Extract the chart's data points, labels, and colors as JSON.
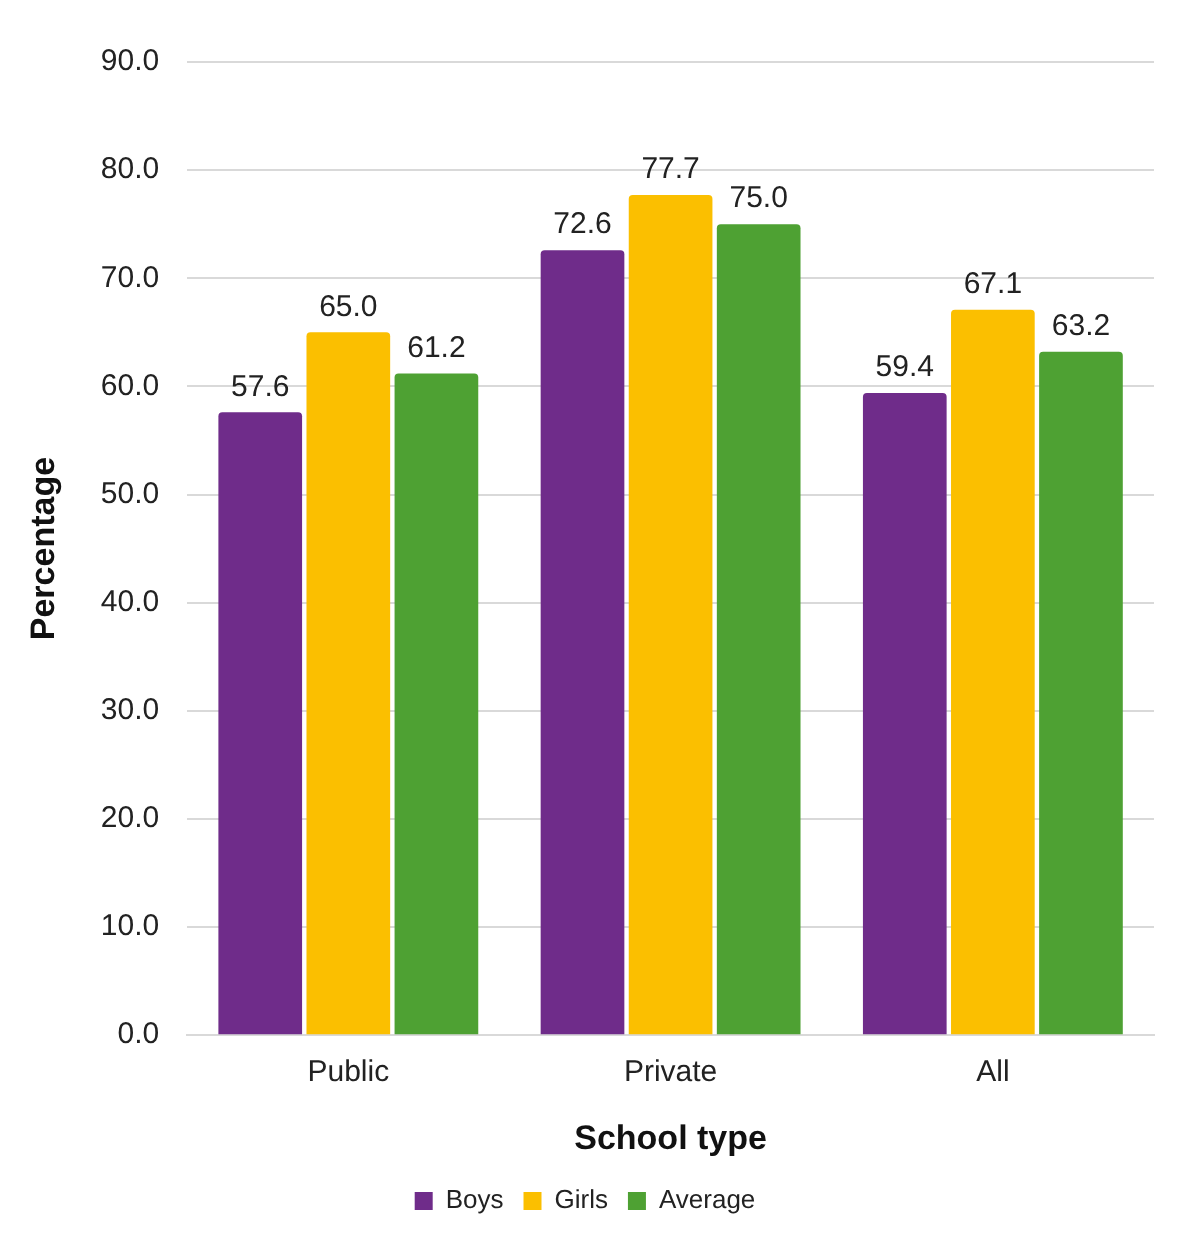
{
  "chart_data": {
    "type": "bar",
    "xlabel": "School type",
    "ylabel": "Percentage",
    "categories": [
      "Public",
      "Private",
      "All"
    ],
    "series": [
      {
        "name": "Boys",
        "color": "#6f2c8a",
        "values": [
          57.6,
          72.6,
          59.4
        ],
        "value_labels": [
          "57.6",
          "72.6",
          "59.4"
        ]
      },
      {
        "name": "Girls",
        "color": "#fbbf00",
        "values": [
          65.0,
          77.7,
          67.1
        ],
        "value_labels": [
          "65.0",
          "77.7",
          "67.1"
        ]
      },
      {
        "name": "Average",
        "color": "#4ea133",
        "values": [
          61.2,
          75.0,
          63.2
        ],
        "value_labels": [
          "61.2",
          "75.0",
          "63.2"
        ]
      }
    ],
    "ylim": [
      0,
      90
    ],
    "yticks": [
      {
        "value": 0,
        "label": "0.0"
      },
      {
        "value": 10,
        "label": "10.0"
      },
      {
        "value": 20,
        "label": "20.0"
      },
      {
        "value": 30,
        "label": "30.0"
      },
      {
        "value": 40,
        "label": "40.0"
      },
      {
        "value": 50,
        "label": "50.0"
      },
      {
        "value": 60,
        "label": "60.0"
      },
      {
        "value": 70,
        "label": "70.0"
      },
      {
        "value": 80,
        "label": "80.0"
      },
      {
        "value": 90,
        "label": "90.0"
      }
    ],
    "grid": "y",
    "legend": "bottom"
  }
}
